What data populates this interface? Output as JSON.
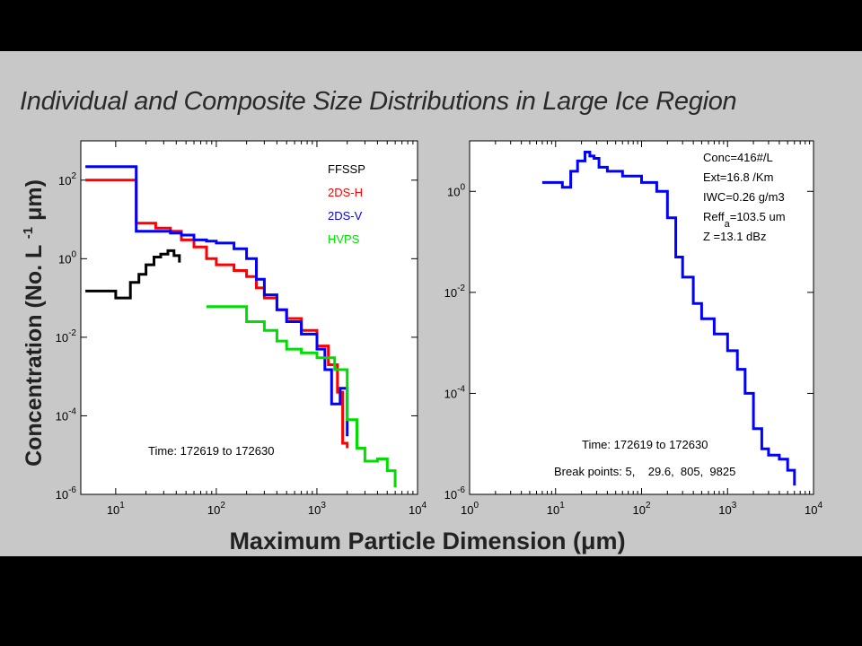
{
  "slide_title": "Individual and Composite Size Distributions in Large Ice Region",
  "y_axis_label": "Concentration (No. L-1 μm)",
  "x_axis_label": "Maximum Particle Dimension (μm)",
  "chart_data": [
    {
      "type": "line",
      "xscale": "log",
      "yscale": "log",
      "xlim": [
        4.5,
        10000
      ],
      "ylim": [
        1e-06,
        1000
      ],
      "x_ticks": [
        "10^1",
        "10^2",
        "10^3",
        "10^4"
      ],
      "y_ticks": [
        "10^-6",
        "10^-4",
        "10^-2",
        "10^0",
        "10^2"
      ],
      "grid": false,
      "legend_position": "top-right",
      "annotation": "Time: 172619 to 172630",
      "series": [
        {
          "name": "FFSSP",
          "color": "#000000",
          "x": [
            5,
            7,
            10,
            12,
            14,
            17,
            20,
            24,
            28,
            33,
            38,
            43
          ],
          "y": [
            0.15,
            0.15,
            0.1,
            0.1,
            0.25,
            0.4,
            0.7,
            1.1,
            1.3,
            1.6,
            1.2,
            0.8
          ]
        },
        {
          "name": "2DS-H",
          "color": "#ff0000",
          "x": [
            5,
            15,
            16,
            25,
            35,
            45,
            60,
            80,
            100,
            150,
            200,
            250,
            300,
            400,
            500,
            700,
            1000,
            1300,
            1600,
            1800,
            2000
          ],
          "y": [
            100,
            100,
            8,
            6,
            5,
            3,
            2,
            1,
            0.7,
            0.5,
            0.35,
            0.18,
            0.1,
            0.05,
            0.03,
            0.015,
            0.006,
            0.002,
            0.0004,
            2e-05,
            1.5e-05
          ]
        },
        {
          "name": "2DS-V",
          "color": "#0000ff",
          "x": [
            5,
            15,
            16,
            25,
            35,
            45,
            60,
            80,
            100,
            150,
            200,
            250,
            300,
            400,
            500,
            700,
            1000,
            1200,
            1400,
            1700,
            2000
          ],
          "y": [
            220,
            220,
            5,
            5,
            4.5,
            4,
            3,
            2.8,
            2.5,
            1.8,
            1,
            0.3,
            0.12,
            0.05,
            0.025,
            0.012,
            0.005,
            0.0015,
            0.0002,
            0.0005,
            3e-05
          ]
        },
        {
          "name": "HVPS",
          "color": "#00dd00",
          "x": [
            80,
            100,
            140,
            200,
            300,
            400,
            500,
            700,
            1000,
            1500,
            2000,
            2500,
            3000,
            4000,
            5000,
            6000
          ],
          "y": [
            0.06,
            0.06,
            0.06,
            0.025,
            0.015,
            0.008,
            0.005,
            0.004,
            0.003,
            0.0015,
            8e-05,
            1.5e-05,
            7e-06,
            8e-06,
            4e-06,
            1.5e-06
          ]
        }
      ]
    },
    {
      "type": "line",
      "xscale": "log",
      "yscale": "log",
      "xlim": [
        1,
        10000
      ],
      "ylim": [
        1e-06,
        10
      ],
      "x_ticks": [
        "10^0",
        "10^1",
        "10^2",
        "10^3",
        "10^4"
      ],
      "y_ticks": [
        "10^-6",
        "10^-4",
        "10^-2",
        "10^0"
      ],
      "grid": false,
      "annotations": [
        "Conc=416#/L",
        "Ext=16.8 /Km",
        "IWC=0.26 g/m3",
        "Reffa=103.5 um",
        "Z   =13.1 dBz"
      ],
      "time_label": "Time: 172619 to 172630",
      "break_points_label": "Break points: 5,    29.6,  805,  9825",
      "series": [
        {
          "name": "",
          "color": "#0000ff",
          "x": [
            7,
            10,
            12,
            15,
            18,
            22,
            25,
            28,
            32,
            40,
            60,
            100,
            150,
            200,
            250,
            300,
            400,
            500,
            700,
            1000,
            1300,
            1600,
            2000,
            2500,
            3000,
            4000,
            5000,
            6000
          ],
          "y": [
            1.5,
            1.5,
            1.2,
            2.5,
            4,
            6,
            5,
            4.5,
            3,
            2.5,
            2,
            1.5,
            1,
            0.3,
            0.05,
            0.02,
            0.006,
            0.003,
            0.0015,
            0.0007,
            0.0003,
            0.0001,
            2e-05,
            8e-06,
            6e-06,
            5e-06,
            3e-06,
            1.5e-06
          ]
        }
      ]
    }
  ]
}
